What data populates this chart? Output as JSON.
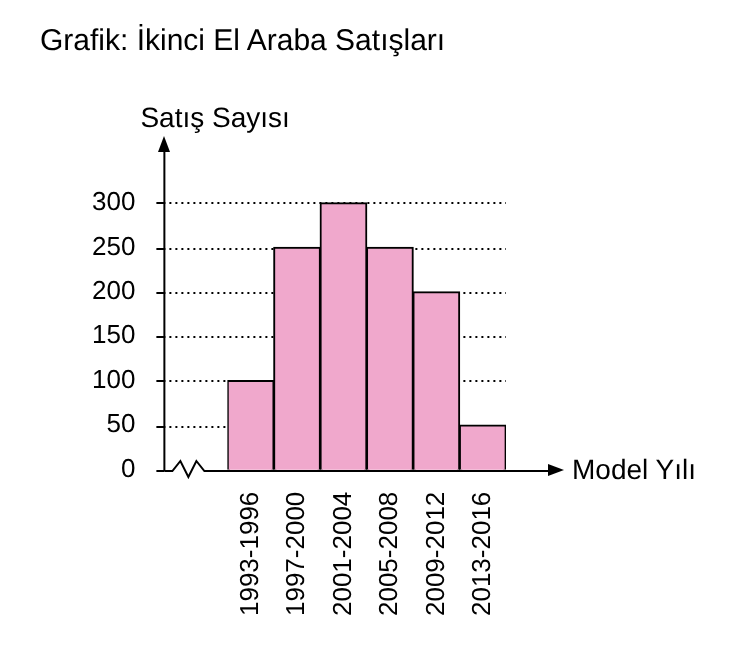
{
  "chart_data": {
    "type": "bar",
    "title": "Grafik: İkinci El Araba Satışları",
    "xlabel": "Model Yılı",
    "ylabel": "Satış Sayısı",
    "categories": [
      "1993-1996",
      "1997-2000",
      "2001-2004",
      "2005-2008",
      "2009-2012",
      "2013-2016"
    ],
    "values": [
      100,
      250,
      300,
      250,
      200,
      50
    ],
    "color": "#f0a8cc",
    "ylim": [
      0,
      360
    ],
    "yticks": [
      0,
      50,
      100,
      150,
      200,
      250,
      300
    ],
    "grid": "y"
  }
}
